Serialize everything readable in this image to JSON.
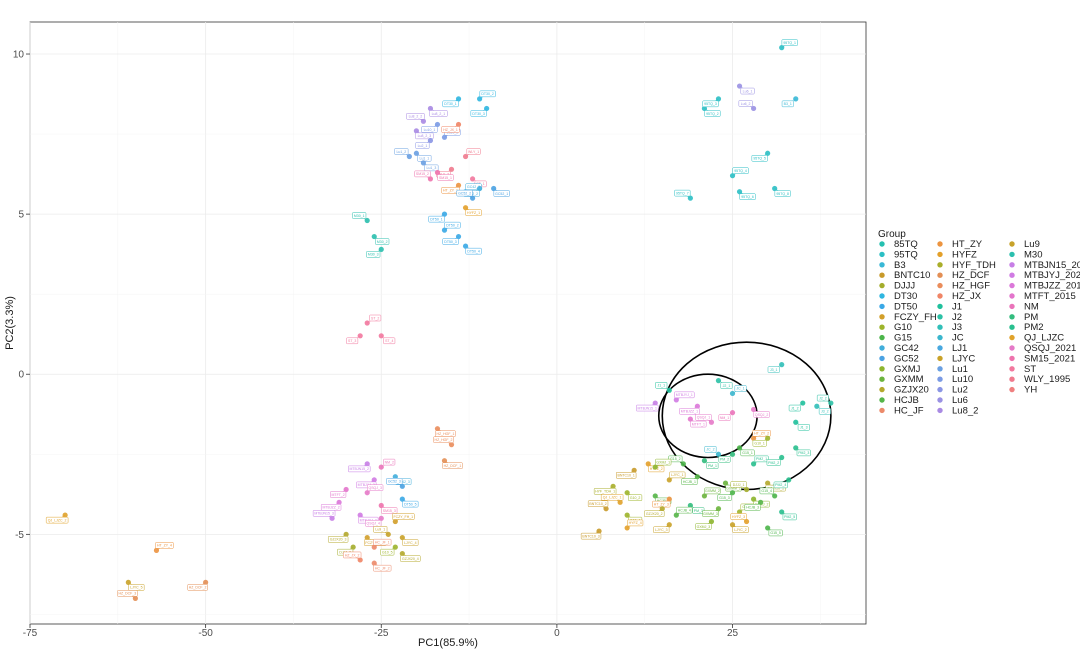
{
  "chart_data": {
    "type": "scatter",
    "title": "",
    "xlabel": "PC1(85.9%)",
    "ylabel": "PC2(3.3%)",
    "xlim": [
      -75,
      44
    ],
    "ylim": [
      -7.8,
      11
    ],
    "xticks": [
      -75,
      -50,
      -25,
      0,
      25
    ],
    "yticks": [
      -5,
      0,
      5,
      10
    ],
    "grid": true,
    "legend": {
      "title": "Group",
      "position": "right",
      "columns": 3,
      "entries": [
        {
          "name": "85TQ",
          "color": "#26c0b0"
        },
        {
          "name": "95TQ",
          "color": "#2bbfc4"
        },
        {
          "name": "B3",
          "color": "#39b8d6"
        },
        {
          "name": "BNTC10",
          "color": "#c89a2a"
        },
        {
          "name": "DJJJ",
          "color": "#a4ad2c"
        },
        {
          "name": "DT30",
          "color": "#2fb6e0"
        },
        {
          "name": "DT50",
          "color": "#3aa8e6"
        },
        {
          "name": "FCZY_FH",
          "color": "#d29f2a"
        },
        {
          "name": "G10",
          "color": "#9db42b"
        },
        {
          "name": "G15",
          "color": "#4cb54a"
        },
        {
          "name": "GC42",
          "color": "#41aedb"
        },
        {
          "name": "GC52",
          "color": "#4aa2e2"
        },
        {
          "name": "GXMJ",
          "color": "#8db52e"
        },
        {
          "name": "GXMM",
          "color": "#6bb43d"
        },
        {
          "name": "GZJX20",
          "color": "#b4a82c"
        },
        {
          "name": "HCJB",
          "color": "#55b548"
        },
        {
          "name": "HC_JF",
          "color": "#ec8a6a"
        },
        {
          "name": "HT_ZY",
          "color": "#ec9440"
        },
        {
          "name": "HYFZ",
          "color": "#e3a02a"
        },
        {
          "name": "HYF_TDH",
          "color": "#a9ae2a"
        },
        {
          "name": "HZ_DCF",
          "color": "#e38f55"
        },
        {
          "name": "HZ_HGF",
          "color": "#ea8d5c"
        },
        {
          "name": "HZ_JX",
          "color": "#f08566"
        },
        {
          "name": "J1",
          "color": "#20c09c"
        },
        {
          "name": "J2",
          "color": "#2cc1a6"
        },
        {
          "name": "J3",
          "color": "#31bfb8"
        },
        {
          "name": "JC",
          "color": "#3bb6cd"
        },
        {
          "name": "LJ1",
          "color": "#48a8df"
        },
        {
          "name": "LJYC",
          "color": "#c9a229"
        },
        {
          "name": "Lu1",
          "color": "#6aa0e2"
        },
        {
          "name": "Lu10",
          "color": "#7a9ae4"
        },
        {
          "name": "Lu2",
          "color": "#8a95e4"
        },
        {
          "name": "Lu6",
          "color": "#9a91e3"
        },
        {
          "name": "Lu8_2",
          "color": "#a98ae3"
        },
        {
          "name": "Lu9",
          "color": "#c7a22a"
        },
        {
          "name": "M30",
          "color": "#2bbfae"
        },
        {
          "name": "MTBJN15_2019",
          "color": "#c77ee6"
        },
        {
          "name": "MTBJYJ_2020",
          "color": "#d07be3"
        },
        {
          "name": "MTBJZZ_2011",
          "color": "#db78d9"
        },
        {
          "name": "MTFT_2015",
          "color": "#e375cc"
        },
        {
          "name": "NM",
          "color": "#ea74ba"
        },
        {
          "name": "PM",
          "color": "#33bc7e"
        },
        {
          "name": "PM2",
          "color": "#29bf8e"
        },
        {
          "name": "QJ_LJZC",
          "color": "#e0a22a"
        },
        {
          "name": "QSQJ_2021",
          "color": "#e57ac8"
        },
        {
          "name": "SM15_2021",
          "color": "#ee73ad"
        },
        {
          "name": "ST",
          "color": "#f2789e"
        },
        {
          "name": "WLY_1995",
          "color": "#f07a8e"
        },
        {
          "name": "YH",
          "color": "#ef7f7f"
        }
      ]
    },
    "ellipses": [
      {
        "center": [
          27,
          -1.3
        ],
        "semi_axes": [
          12,
          2.3
        ],
        "description": "outer ellipse"
      },
      {
        "center": [
          21.5,
          -1.3
        ],
        "semi_axes": [
          7,
          1.3
        ],
        "description": "inner ellipse"
      }
    ],
    "points": [
      {
        "x": 32,
        "y": 10.2,
        "label": "95TQ_1",
        "c": "#2bbfc4"
      },
      {
        "x": 34,
        "y": 8.6,
        "label": "B3_1",
        "c": "#39b8d6"
      },
      {
        "x": 26,
        "y": 9.0,
        "label": "Lu6_1",
        "c": "#9a91e3"
      },
      {
        "x": 28,
        "y": 8.3,
        "label": "Lu6_2",
        "c": "#9a91e3"
      },
      {
        "x": 21,
        "y": 8.3,
        "label": "95TQ_2",
        "c": "#2bbfc4"
      },
      {
        "x": 23,
        "y": 8.6,
        "label": "95TQ_3",
        "c": "#2bbfc4"
      },
      {
        "x": 25,
        "y": 6.2,
        "label": "95TQ_4",
        "c": "#2bbfc4"
      },
      {
        "x": 30,
        "y": 6.9,
        "label": "95TQ_5",
        "c": "#2bbfc4"
      },
      {
        "x": 26,
        "y": 5.7,
        "label": "95TQ_6",
        "c": "#2bbfc4"
      },
      {
        "x": 19,
        "y": 5.5,
        "label": "95TQ_7",
        "c": "#2bbfc4"
      },
      {
        "x": 31,
        "y": 5.8,
        "label": "95TQ_8",
        "c": "#2bbfc4"
      },
      {
        "x": -14,
        "y": 8.6,
        "label": "DT30_1",
        "c": "#2fb6e0"
      },
      {
        "x": -11,
        "y": 8.6,
        "label": "DT30_2",
        "c": "#2fb6e0"
      },
      {
        "x": -10,
        "y": 8.3,
        "label": "DT30_3",
        "c": "#2fb6e0"
      },
      {
        "x": -18,
        "y": 8.3,
        "label": "Lu8_2_1",
        "c": "#a98ae3"
      },
      {
        "x": -19,
        "y": 7.9,
        "label": "Lu8_2_2",
        "c": "#a98ae3"
      },
      {
        "x": -20,
        "y": 7.6,
        "label": "Lu8_2_3",
        "c": "#a98ae3"
      },
      {
        "x": -17,
        "y": 7.8,
        "label": "Lu10_1",
        "c": "#7a9ae4"
      },
      {
        "x": -16,
        "y": 7.4,
        "label": "Lu10_2",
        "c": "#7a9ae4"
      },
      {
        "x": -18,
        "y": 7.3,
        "label": "Lu2_1",
        "c": "#8a95e4"
      },
      {
        "x": -20,
        "y": 6.9,
        "label": "Lu1_1",
        "c": "#6aa0e2"
      },
      {
        "x": -21,
        "y": 6.8,
        "label": "Lu1_2",
        "c": "#6aa0e2"
      },
      {
        "x": -19,
        "y": 6.6,
        "label": "Lu1_3",
        "c": "#6aa0e2"
      },
      {
        "x": -14,
        "y": 7.8,
        "label": "HZ_JX_1",
        "c": "#f08566"
      },
      {
        "x": -13,
        "y": 6.8,
        "label": "WLY_1",
        "c": "#f07a8e"
      },
      {
        "x": -15,
        "y": 6.4,
        "label": "WLY_2",
        "c": "#f07a8e"
      },
      {
        "x": -17,
        "y": 6.3,
        "label": "SM15_1",
        "c": "#ee73ad"
      },
      {
        "x": -18,
        "y": 6.1,
        "label": "SM15_2",
        "c": "#ee73ad"
      },
      {
        "x": -12,
        "y": 6.1,
        "label": "ST_1",
        "c": "#f2789e"
      },
      {
        "x": -14,
        "y": 5.9,
        "label": "HT_ZY_1",
        "c": "#ec9440"
      },
      {
        "x": -13,
        "y": 5.7,
        "label": "GC42_1",
        "c": "#41aedb"
      },
      {
        "x": -11,
        "y": 5.8,
        "label": "GC42_2",
        "c": "#41aedb"
      },
      {
        "x": -9,
        "y": 5.8,
        "label": "GC52_1",
        "c": "#4aa2e2"
      },
      {
        "x": -12,
        "y": 5.5,
        "label": "GC52_2",
        "c": "#4aa2e2"
      },
      {
        "x": -13,
        "y": 5.2,
        "label": "HYFZ_1",
        "c": "#e3a02a"
      },
      {
        "x": -16,
        "y": 5.0,
        "label": "DT50_1",
        "c": "#3aa8e6"
      },
      {
        "x": -16,
        "y": 4.5,
        "label": "DT50_2",
        "c": "#3aa8e6"
      },
      {
        "x": -14,
        "y": 4.3,
        "label": "DT50_3",
        "c": "#3aa8e6"
      },
      {
        "x": -13,
        "y": 4.0,
        "label": "DT50_4",
        "c": "#3aa8e6"
      },
      {
        "x": -27,
        "y": 4.8,
        "label": "M30_1",
        "c": "#2bbfae"
      },
      {
        "x": -26,
        "y": 4.3,
        "label": "M30_2",
        "c": "#2bbfae"
      },
      {
        "x": -25,
        "y": 3.9,
        "label": "M30_3",
        "c": "#2bbfae"
      },
      {
        "x": -27,
        "y": 1.6,
        "label": "ST_2",
        "c": "#f2789e"
      },
      {
        "x": -28,
        "y": 1.2,
        "label": "ST_3",
        "c": "#f2789e"
      },
      {
        "x": -25,
        "y": 1.2,
        "label": "ST_4",
        "c": "#f2789e"
      },
      {
        "x": 16,
        "y": -0.5,
        "label": "J1_1",
        "c": "#20c09c"
      },
      {
        "x": 23,
        "y": -0.2,
        "label": "J2_1",
        "c": "#2cc1a6"
      },
      {
        "x": 32,
        "y": 0.3,
        "label": "J3_1",
        "c": "#31bfb8"
      },
      {
        "x": 25,
        "y": -0.6,
        "label": "JC_1",
        "c": "#3bb6cd"
      },
      {
        "x": 35,
        "y": -0.9,
        "label": "J1_2",
        "c": "#20c09c"
      },
      {
        "x": 37,
        "y": -1.0,
        "label": "J3_2",
        "c": "#31bfb8"
      },
      {
        "x": 39,
        "y": -0.9,
        "label": "J2_2",
        "c": "#2cc1a6"
      },
      {
        "x": 34,
        "y": -1.5,
        "label": "J1_3",
        "c": "#20c09c"
      },
      {
        "x": 14,
        "y": -0.9,
        "label": "MTBJN15_1",
        "c": "#c77ee6"
      },
      {
        "x": 17,
        "y": -0.8,
        "label": "MTBJYJ_1",
        "c": "#d07be3"
      },
      {
        "x": 20,
        "y": -1.0,
        "label": "MTBJZZ_1",
        "c": "#db78d9"
      },
      {
        "x": 19,
        "y": -1.4,
        "label": "MTFT_1",
        "c": "#e375cc"
      },
      {
        "x": 22,
        "y": -1.5,
        "label": "QSQJ_1",
        "c": "#e57ac8"
      },
      {
        "x": 28,
        "y": -1.1,
        "label": "QSQJ_2",
        "c": "#e57ac8"
      },
      {
        "x": 25,
        "y": -1.2,
        "label": "NM_1",
        "c": "#ea74ba"
      },
      {
        "x": 28,
        "y": -2.0,
        "label": "HT_ZY_2",
        "c": "#ec9440"
      },
      {
        "x": 30,
        "y": -2.0,
        "label": "G10_1",
        "c": "#9db42b"
      },
      {
        "x": 26,
        "y": -2.3,
        "label": "G15_1",
        "c": "#4cb54a"
      },
      {
        "x": 23,
        "y": -2.5,
        "label": "JC_2",
        "c": "#3bb6cd"
      },
      {
        "x": 21,
        "y": -2.7,
        "label": "PM_1",
        "c": "#33bc7e"
      },
      {
        "x": 25,
        "y": -2.5,
        "label": "PM_2",
        "c": "#33bc7e"
      },
      {
        "x": 28,
        "y": -2.8,
        "label": "PM2_1",
        "c": "#29bf8e"
      },
      {
        "x": 32,
        "y": -2.6,
        "label": "PM2_2",
        "c": "#29bf8e"
      },
      {
        "x": 34,
        "y": -2.3,
        "label": "PM2_3",
        "c": "#29bf8e"
      },
      {
        "x": 18,
        "y": -2.8,
        "label": "G15_2",
        "c": "#4cb54a"
      },
      {
        "x": 13,
        "y": -2.8,
        "label": "HYFZ_2",
        "c": "#e3a02a"
      },
      {
        "x": 11,
        "y": -3.0,
        "label": "BNTC10_1",
        "c": "#c89a2a"
      },
      {
        "x": 14,
        "y": -2.9,
        "label": "GXMJ_1",
        "c": "#8db52e"
      },
      {
        "x": 20,
        "y": -3.2,
        "label": "HCJB_1",
        "c": "#55b548"
      },
      {
        "x": 24,
        "y": -3.4,
        "label": "GXMM_1",
        "c": "#6bb43d"
      },
      {
        "x": 27,
        "y": -3.6,
        "label": "DJJJ_1",
        "c": "#a4ad2c"
      },
      {
        "x": 30,
        "y": -3.4,
        "label": "GZJX20_1",
        "c": "#b4a82c"
      },
      {
        "x": 33,
        "y": -3.3,
        "label": "PM2_4",
        "c": "#29bf8e"
      },
      {
        "x": 16,
        "y": -3.3,
        "label": "LJYC_1",
        "c": "#c9a229"
      },
      {
        "x": 8,
        "y": -3.5,
        "label": "HYF_TDH_1",
        "c": "#a9ae2a"
      },
      {
        "x": 10,
        "y": -3.7,
        "label": "G10_2",
        "c": "#9db42b"
      },
      {
        "x": 9,
        "y": -4.0,
        "label": "QJ_LJZC_1",
        "c": "#e0a22a"
      },
      {
        "x": 14,
        "y": -3.8,
        "label": "HCJB_2",
        "c": "#55b548"
      },
      {
        "x": 16,
        "y": -3.9,
        "label": "HT_ZY_3",
        "c": "#ec9440"
      },
      {
        "x": 21,
        "y": -3.8,
        "label": "GXMM_2",
        "c": "#6bb43d"
      },
      {
        "x": 25,
        "y": -3.7,
        "label": "G15_3",
        "c": "#4cb54a"
      },
      {
        "x": 28,
        "y": -3.9,
        "label": "GXMJ_2",
        "c": "#8db52e"
      },
      {
        "x": 31,
        "y": -3.8,
        "label": "G15_4",
        "c": "#4cb54a"
      },
      {
        "x": 19,
        "y": -4.1,
        "label": "PM_3",
        "c": "#33bc7e"
      },
      {
        "x": 23,
        "y": -4.2,
        "label": "GXMM_3",
        "c": "#6bb43d"
      },
      {
        "x": 26,
        "y": -4.3,
        "label": "G10_3",
        "c": "#9db42b"
      },
      {
        "x": 29,
        "y": -4.0,
        "label": "HCJB_3",
        "c": "#55b548"
      },
      {
        "x": 32,
        "y": -4.3,
        "label": "PM2_5",
        "c": "#29bf8e"
      },
      {
        "x": 7,
        "y": -4.2,
        "label": "BNTC10_2",
        "c": "#c89a2a"
      },
      {
        "x": 10,
        "y": -4.4,
        "label": "G10_4",
        "c": "#9db42b"
      },
      {
        "x": 15,
        "y": -4.2,
        "label": "GZJX20_2",
        "c": "#b4a82c"
      },
      {
        "x": 17,
        "y": -4.4,
        "label": "HCJB_4",
        "c": "#55b548"
      },
      {
        "x": 22,
        "y": -4.6,
        "label": "GXMJ_3",
        "c": "#8db52e"
      },
      {
        "x": 25,
        "y": -4.7,
        "label": "LJYC_2",
        "c": "#c9a229"
      },
      {
        "x": 27,
        "y": -4.6,
        "label": "HYFZ_3",
        "c": "#e3a02a"
      },
      {
        "x": 30,
        "y": -4.8,
        "label": "G15_5",
        "c": "#4cb54a"
      },
      {
        "x": 6,
        "y": -4.9,
        "label": "BNTC10_3",
        "c": "#c89a2a"
      },
      {
        "x": 10,
        "y": -4.8,
        "label": "HYFZ_4",
        "c": "#e3a02a"
      },
      {
        "x": 16,
        "y": -4.7,
        "label": "LJYC_3",
        "c": "#c9a229"
      },
      {
        "x": -17,
        "y": -1.7,
        "label": "HZ_HGF_1",
        "c": "#ea8d5c"
      },
      {
        "x": -15,
        "y": -2.2,
        "label": "HZ_HGF_2",
        "c": "#ea8d5c"
      },
      {
        "x": -16,
        "y": -2.7,
        "label": "HZ_DCF_1",
        "c": "#e38f55"
      },
      {
        "x": -27,
        "y": -2.8,
        "label": "MTBJN15_2",
        "c": "#c77ee6"
      },
      {
        "x": -25,
        "y": -2.9,
        "label": "NM_2",
        "c": "#ea74ba"
      },
      {
        "x": -26,
        "y": -3.3,
        "label": "MTBJYJ_2",
        "c": "#d07be3"
      },
      {
        "x": -23,
        "y": -3.2,
        "label": "GC42_3",
        "c": "#41aedb"
      },
      {
        "x": -22,
        "y": -3.5,
        "label": "GC52_3",
        "c": "#4aa2e2"
      },
      {
        "x": -22,
        "y": -3.9,
        "label": "DT50_5",
        "c": "#3aa8e6"
      },
      {
        "x": -30,
        "y": -3.6,
        "label": "MTFT_2",
        "c": "#e375cc"
      },
      {
        "x": -27,
        "y": -3.7,
        "label": "QSQJ_3",
        "c": "#e57ac8"
      },
      {
        "x": -31,
        "y": -4.0,
        "label": "MTBJZZ_2",
        "c": "#db78d9"
      },
      {
        "x": -25,
        "y": -4.1,
        "label": "SM15_3",
        "c": "#ee73ad"
      },
      {
        "x": -32,
        "y": -4.5,
        "label": "MTBJN15_3",
        "c": "#c77ee6"
      },
      {
        "x": -28,
        "y": -4.4,
        "label": "MTBJYJ_3",
        "c": "#d07be3"
      },
      {
        "x": -25,
        "y": -4.5,
        "label": "QSQJ_4",
        "c": "#e57ac8"
      },
      {
        "x": -23,
        "y": -4.6,
        "label": "FCZY_FH_1",
        "c": "#d29f2a"
      },
      {
        "x": -30,
        "y": -5.0,
        "label": "GZJX20_3",
        "c": "#b4a82c"
      },
      {
        "x": -27,
        "y": -5.1,
        "label": "FCZY_FH_2",
        "c": "#d29f2a"
      },
      {
        "x": -24,
        "y": -5.0,
        "label": "Lu9_1",
        "c": "#c7a22a"
      },
      {
        "x": -22,
        "y": -5.1,
        "label": "LJYC_4",
        "c": "#c9a229"
      },
      {
        "x": -29,
        "y": -5.4,
        "label": "DJJJ_2",
        "c": "#a4ad2c"
      },
      {
        "x": -26,
        "y": -5.4,
        "label": "HC_JF_1",
        "c": "#ec8a6a"
      },
      {
        "x": -23,
        "y": -5.4,
        "label": "G10_5",
        "c": "#9db42b"
      },
      {
        "x": -22,
        "y": -5.6,
        "label": "GZJX20_4",
        "c": "#b4a82c"
      },
      {
        "x": -28,
        "y": -5.8,
        "label": "HZ_JX_2",
        "c": "#f08566"
      },
      {
        "x": -26,
        "y": -5.9,
        "label": "HC_JF_2",
        "c": "#ec8a6a"
      },
      {
        "x": -70,
        "y": -4.4,
        "label": "QJ_LJZC_2",
        "c": "#e0a22a"
      },
      {
        "x": -57,
        "y": -5.5,
        "label": "HT_ZY_4",
        "c": "#ec9440"
      },
      {
        "x": -50,
        "y": -6.5,
        "label": "HZ_DCF_2",
        "c": "#e38f55"
      },
      {
        "x": -61,
        "y": -6.5,
        "label": "LJYC_5",
        "c": "#c9a229"
      },
      {
        "x": -60,
        "y": -7.0,
        "label": "HZ_DCF_3",
        "c": "#e38f55"
      }
    ]
  }
}
